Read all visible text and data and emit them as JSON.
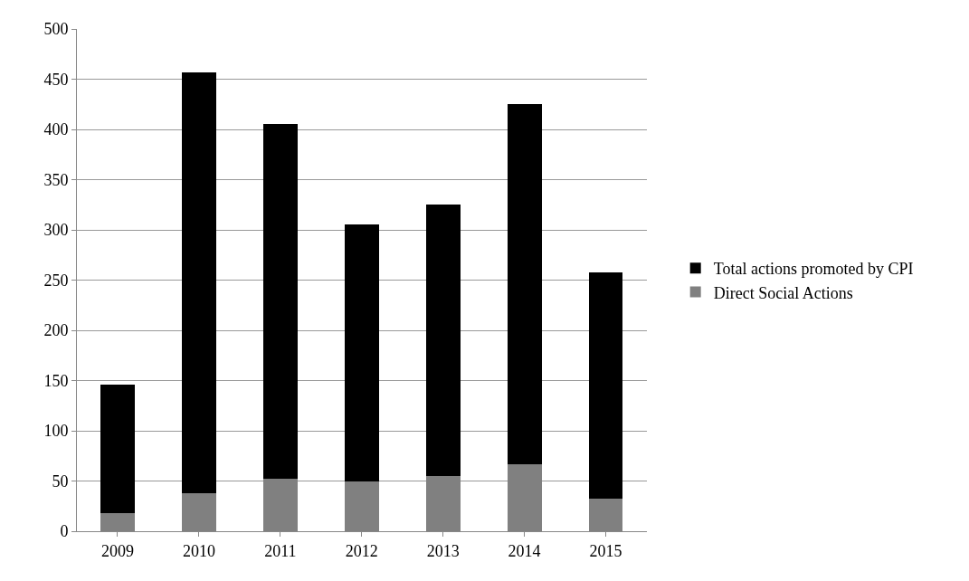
{
  "chart_data": {
    "type": "bar",
    "stacked": true,
    "categories": [
      "2009",
      "2010",
      "2011",
      "2012",
      "2013",
      "2014",
      "2015"
    ],
    "series": [
      {
        "name": "Direct Social Actions",
        "color": "#808080",
        "values": [
          18,
          38,
          52,
          50,
          55,
          67,
          32
        ]
      },
      {
        "name": "Total actions promoted by CPI",
        "color": "#000000",
        "values": [
          128,
          419,
          353,
          255,
          270,
          358,
          226
        ]
      }
    ],
    "ylim": [
      0,
      500
    ],
    "yticks": [
      0,
      50,
      100,
      150,
      200,
      250,
      300,
      350,
      400,
      450,
      500
    ],
    "grid": "y",
    "legend": "right"
  }
}
